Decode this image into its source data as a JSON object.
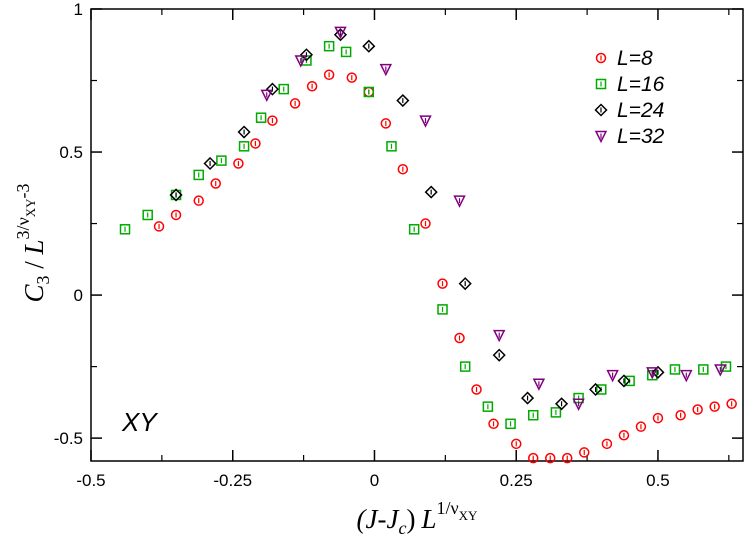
{
  "chart_data": {
    "type": "scatter",
    "title": "",
    "xlabel": "(J-J_c) L^(1/ν_XY)",
    "ylabel": "C_3 / L^(3/ν_XY - 3)",
    "xlabel_parts": {
      "main": "(J-J",
      "sub": "c",
      "close": ")",
      "L": "L",
      "sup_frac": "1/ν",
      "sup_sub": "XY"
    },
    "ylabel_parts": {
      "C": "C",
      "C_sub": "3",
      "slash": " / ",
      "L": "L",
      "sup": "3/ν",
      "sup_sub": "XY",
      "sup_tail": "-3"
    },
    "xlim": [
      -0.5,
      0.65
    ],
    "ylim": [
      -0.58,
      1.0
    ],
    "xticks": [
      -0.5,
      -0.25,
      0,
      0.25,
      0.5
    ],
    "xtick_labels": [
      "-0.5",
      "-0.25",
      "0",
      "0.25",
      "0.5"
    ],
    "yticks": [
      -0.5,
      0,
      0.5,
      1
    ],
    "ytick_labels": [
      "-0.5",
      "0",
      "0.5",
      "1"
    ],
    "annotation": "XY",
    "legend_position": "top-right",
    "series": [
      {
        "name": "L=8",
        "marker": "circle",
        "color": "#ff0000",
        "x": [
          -0.38,
          -0.35,
          -0.31,
          -0.28,
          -0.24,
          -0.21,
          -0.18,
          -0.14,
          -0.11,
          -0.08,
          -0.04,
          -0.01,
          0.02,
          0.05,
          0.09,
          0.12,
          0.15,
          0.18,
          0.21,
          0.25,
          0.28,
          0.31,
          0.34,
          0.37,
          0.41,
          0.44,
          0.47,
          0.5,
          0.54,
          0.57,
          0.6,
          0.63
        ],
        "y": [
          0.24,
          0.28,
          0.33,
          0.39,
          0.46,
          0.53,
          0.61,
          0.67,
          0.73,
          0.77,
          0.76,
          0.71,
          0.6,
          0.44,
          0.25,
          0.04,
          -0.15,
          -0.33,
          -0.45,
          -0.52,
          -0.57,
          -0.57,
          -0.57,
          -0.55,
          -0.52,
          -0.49,
          -0.46,
          -0.43,
          -0.42,
          -0.4,
          -0.39,
          -0.38
        ]
      },
      {
        "name": "L=16",
        "marker": "square",
        "color": "#00aa00",
        "x": [
          -0.44,
          -0.4,
          -0.35,
          -0.31,
          -0.27,
          -0.23,
          -0.2,
          -0.16,
          -0.12,
          -0.08,
          -0.05,
          -0.01,
          0.03,
          0.07,
          0.12,
          0.16,
          0.2,
          0.24,
          0.28,
          0.32,
          0.36,
          0.4,
          0.45,
          0.49,
          0.53,
          0.58,
          0.62
        ],
        "y": [
          0.23,
          0.28,
          0.35,
          0.42,
          0.47,
          0.52,
          0.62,
          0.72,
          0.82,
          0.87,
          0.85,
          0.71,
          0.52,
          0.23,
          -0.05,
          -0.25,
          -0.39,
          -0.45,
          -0.42,
          -0.41,
          -0.36,
          -0.33,
          -0.3,
          -0.28,
          -0.26,
          -0.26,
          -0.25
        ]
      },
      {
        "name": "L=24",
        "marker": "diamond",
        "color": "#000000",
        "x": [
          -0.35,
          -0.29,
          -0.23,
          -0.18,
          -0.12,
          -0.06,
          -0.01,
          0.05,
          0.1,
          0.16,
          0.22,
          0.27,
          0.33,
          0.39,
          0.44,
          0.5
        ],
        "y": [
          0.35,
          0.46,
          0.57,
          0.72,
          0.84,
          0.91,
          0.87,
          0.68,
          0.36,
          0.04,
          -0.21,
          -0.36,
          -0.38,
          -0.33,
          -0.3,
          -0.27
        ]
      },
      {
        "name": "L=32",
        "marker": "triangle-down",
        "color": "#800080",
        "x": [
          -0.19,
          -0.13,
          -0.06,
          0.02,
          0.09,
          0.15,
          0.22,
          0.29,
          0.36,
          0.42,
          0.49,
          0.55,
          0.61
        ],
        "y": [
          0.7,
          0.82,
          0.92,
          0.79,
          0.61,
          0.33,
          -0.14,
          -0.31,
          -0.38,
          -0.28,
          -0.27,
          -0.28,
          -0.26
        ]
      }
    ]
  }
}
